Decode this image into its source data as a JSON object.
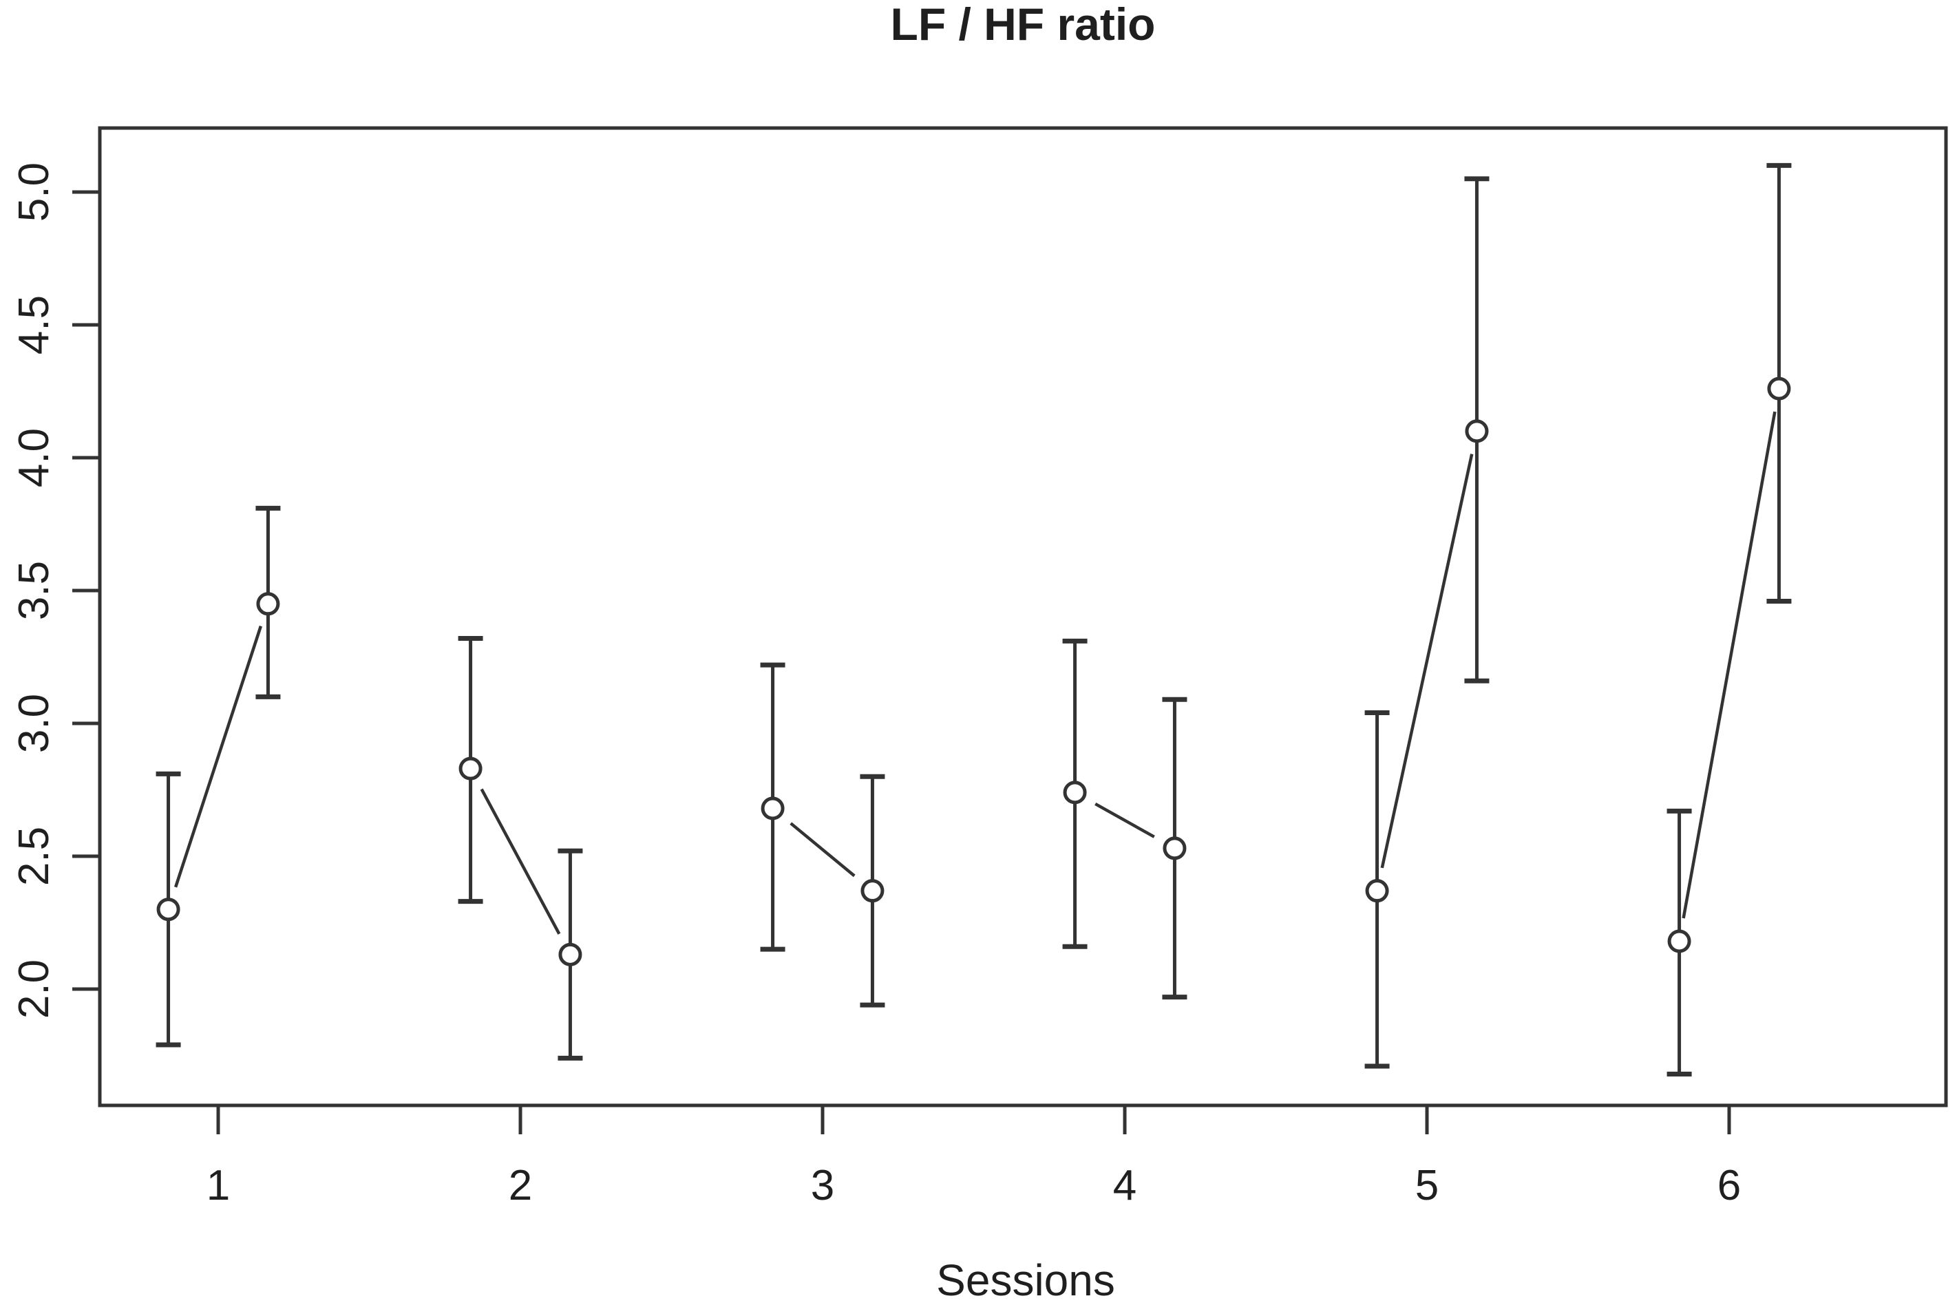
{
  "chart_data": {
    "type": "line",
    "subtype": "paired-means-with-error-bars",
    "title": "LF / HF ratio",
    "xlabel": "Sessions",
    "ylabel": "",
    "grid": false,
    "legend": null,
    "xlim": [
      0.61,
      6.72
    ],
    "ylim": [
      1.56,
      5.24
    ],
    "x_tick_values": [
      1,
      2,
      3,
      4,
      5,
      6
    ],
    "x_tick_labels": [
      "1",
      "2",
      "3",
      "4",
      "5",
      "6"
    ],
    "y_tick_values": [
      2.0,
      2.5,
      3.0,
      3.5,
      4.0,
      4.5,
      5.0
    ],
    "y_tick_labels": [
      "2.0",
      "2.5",
      "3.0",
      "3.5",
      "4.0",
      "4.5",
      "5.0"
    ],
    "marker": "open-circle",
    "pairs_connected": true,
    "point_offset_from_session": 0.165,
    "sessions": [
      {
        "label": "1",
        "x_center": 1,
        "points": [
          {
            "x": 0.835,
            "mean": 2.3,
            "lower": 1.79,
            "upper": 2.81
          },
          {
            "x": 1.165,
            "mean": 3.45,
            "lower": 3.1,
            "upper": 3.81
          }
        ]
      },
      {
        "label": "2",
        "x_center": 2,
        "points": [
          {
            "x": 1.835,
            "mean": 2.83,
            "lower": 2.33,
            "upper": 3.32
          },
          {
            "x": 2.165,
            "mean": 2.13,
            "lower": 1.74,
            "upper": 2.52
          }
        ]
      },
      {
        "label": "3",
        "x_center": 3,
        "points": [
          {
            "x": 2.835,
            "mean": 2.68,
            "lower": 2.15,
            "upper": 3.22
          },
          {
            "x": 3.165,
            "mean": 2.37,
            "lower": 1.94,
            "upper": 2.8
          }
        ]
      },
      {
        "label": "4",
        "x_center": 4,
        "points": [
          {
            "x": 3.835,
            "mean": 2.74,
            "lower": 2.16,
            "upper": 3.31
          },
          {
            "x": 4.165,
            "mean": 2.53,
            "lower": 1.97,
            "upper": 3.09
          }
        ]
      },
      {
        "label": "5",
        "x_center": 5,
        "points": [
          {
            "x": 4.835,
            "mean": 2.37,
            "lower": 1.71,
            "upper": 3.04
          },
          {
            "x": 5.165,
            "mean": 4.1,
            "lower": 3.16,
            "upper": 5.05
          }
        ]
      },
      {
        "label": "6",
        "x_center": 6,
        "points": [
          {
            "x": 5.835,
            "mean": 2.18,
            "lower": 1.68,
            "upper": 2.67
          },
          {
            "x": 6.165,
            "mean": 4.26,
            "lower": 3.46,
            "upper": 5.1
          }
        ]
      }
    ],
    "colors": {
      "stroke": "#333333",
      "background": "#ffffff",
      "marker_fill": "#ffffff"
    }
  }
}
